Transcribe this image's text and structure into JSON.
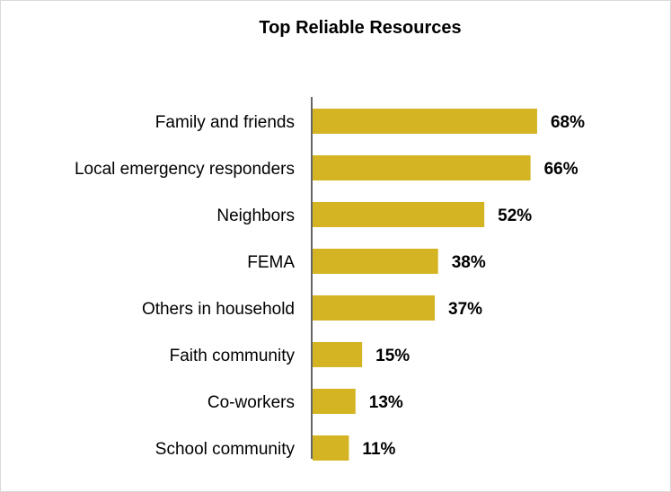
{
  "chart_data": {
    "type": "bar",
    "orientation": "horizontal",
    "title": "Top Reliable Resources",
    "categories": [
      "Family and friends",
      "Local emergency responders",
      "Neighbors",
      "FEMA",
      "Others in household",
      "Faith community",
      "Co-workers",
      "School community"
    ],
    "values": [
      68,
      66,
      52,
      38,
      37,
      15,
      13,
      11
    ],
    "value_labels": [
      "68%",
      "66%",
      "52%",
      "38%",
      "37%",
      "15%",
      "13%",
      "11%"
    ],
    "xlim": [
      0,
      100
    ],
    "grid": false,
    "legend": "none",
    "bar_color": "#d4b422"
  }
}
